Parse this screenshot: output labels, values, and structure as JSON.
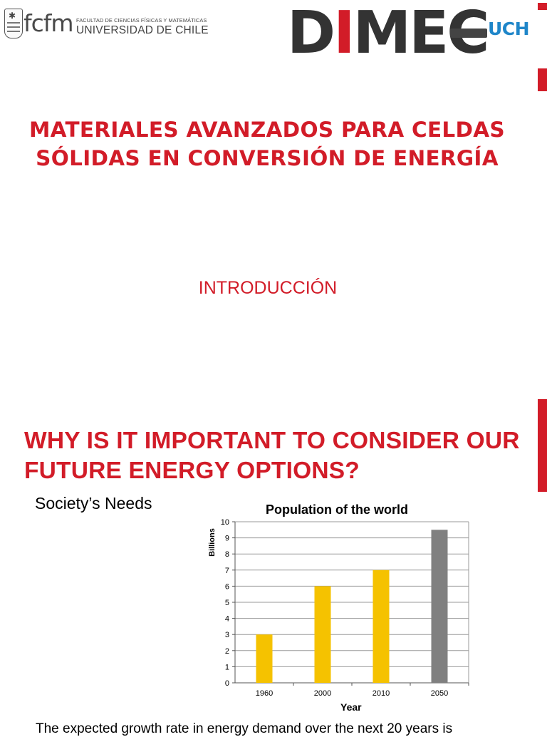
{
  "header": {
    "fcfm_logo": "fcfm",
    "faculty": "FACULTAD DE CIENCIAS FÍSICAS Y MATEMÁTICAS",
    "university": "UNIVERSIDAD DE CHILE",
    "dimec_logo_letters": [
      "D",
      "I",
      "MEC"
    ],
    "dimec_suffix": "UCH"
  },
  "slide1": {
    "title": "MATERIALES AVANZADOS PARA CELDAS SÓLIDAS EN CONVERSIÓN DE ENERGÍA",
    "subtitle": "INTRODUCCIÓN"
  },
  "slide2": {
    "heading": "WHY IS IT IMPORTANT TO CONSIDER OUR FUTURE ENERGY OPTIONS?",
    "section_label": "Society’s Needs",
    "bottom_text": "The expected growth rate in energy demand over the next 20 years is"
  },
  "colors": {
    "accent_red": "#d21c28",
    "bar_yellow": "#f5c200",
    "bar_gray": "#808080",
    "dimec_blue": "#1f86c9"
  },
  "chart_data": {
    "type": "bar",
    "title": "Population of the world",
    "xlabel": "Year",
    "ylabel": "Billions",
    "categories": [
      "1960",
      "2000",
      "2010",
      "2050"
    ],
    "values": [
      3,
      6,
      7,
      9.5
    ],
    "bar_colors": [
      "#f5c200",
      "#f5c200",
      "#f5c200",
      "#808080"
    ],
    "ylim": [
      0,
      10
    ],
    "yticks": [
      0,
      1,
      2,
      3,
      4,
      5,
      6,
      7,
      8,
      9,
      10
    ],
    "grid": true,
    "legend": "none"
  }
}
